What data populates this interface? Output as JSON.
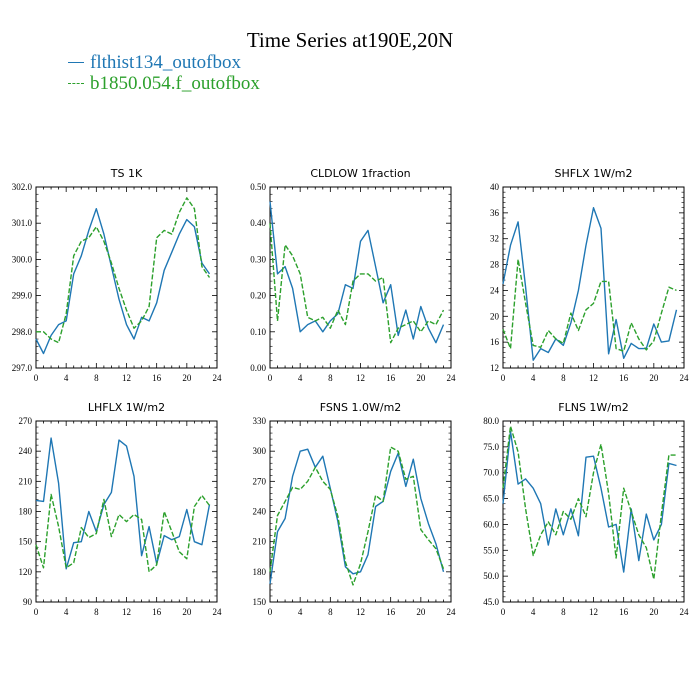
{
  "figure": {
    "title": "Time Series at190E,20N",
    "legend": [
      {
        "label": "flthist134_outofbox",
        "color": "#1f77b4",
        "style": "solid"
      },
      {
        "label": "b1850.054.f_outofbox",
        "color": "#2ca02c",
        "style": "dashed"
      }
    ]
  },
  "chart_data": [
    {
      "type": "line",
      "title": "TS   1K",
      "xlim": [
        0,
        24
      ],
      "xticks": [
        0,
        4,
        8,
        12,
        16,
        20,
        24
      ],
      "ylim": [
        297.0,
        302.0
      ],
      "yticks": [
        297.0,
        298.0,
        299.0,
        300.0,
        301.0,
        302.0
      ],
      "yticklabels": [
        "297.0",
        "298.0",
        "299.0",
        "300.0",
        "301.0",
        "302.0"
      ],
      "series": [
        {
          "name": "flthist134_outofbox",
          "x": [
            0,
            1,
            2,
            3,
            4,
            5,
            6,
            7,
            8,
            9,
            10,
            11,
            12,
            13,
            14,
            15,
            16,
            17,
            18,
            19,
            20,
            21,
            22,
            23
          ],
          "y": [
            297.8,
            297.4,
            297.9,
            298.2,
            298.3,
            299.6,
            300.1,
            300.8,
            301.4,
            300.7,
            299.8,
            298.9,
            298.2,
            297.8,
            298.4,
            298.3,
            298.8,
            299.7,
            300.2,
            300.7,
            301.1,
            300.9,
            299.9,
            299.6
          ]
        },
        {
          "name": "b1850.054.f_outofbox",
          "x": [
            0,
            1,
            2,
            3,
            4,
            5,
            6,
            7,
            8,
            9,
            10,
            11,
            12,
            13,
            14,
            15,
            16,
            17,
            18,
            19,
            20,
            21,
            22,
            23
          ],
          "y": [
            298.0,
            298.0,
            297.8,
            297.7,
            298.5,
            300.1,
            300.5,
            300.6,
            300.9,
            300.5,
            299.9,
            299.2,
            298.6,
            298.1,
            298.3,
            298.7,
            300.6,
            300.8,
            300.7,
            301.3,
            301.7,
            301.4,
            299.8,
            299.5
          ]
        }
      ]
    },
    {
      "type": "line",
      "title": "CLDLOW   1fraction",
      "xlim": [
        0,
        24
      ],
      "xticks": [
        0,
        4,
        8,
        12,
        16,
        20,
        24
      ],
      "ylim": [
        0.0,
        0.5
      ],
      "yticks": [
        0.0,
        0.1,
        0.2,
        0.3,
        0.4,
        0.5
      ],
      "yticklabels": [
        "0.00",
        "0.10",
        "0.20",
        "0.30",
        "0.40",
        "0.50"
      ],
      "series": [
        {
          "name": "flthist134_outofbox",
          "x": [
            0,
            1,
            2,
            3,
            4,
            5,
            6,
            7,
            8,
            9,
            10,
            11,
            12,
            13,
            14,
            15,
            16,
            17,
            18,
            19,
            20,
            21,
            22,
            23
          ],
          "y": [
            0.46,
            0.26,
            0.28,
            0.22,
            0.1,
            0.12,
            0.13,
            0.1,
            0.13,
            0.15,
            0.23,
            0.22,
            0.35,
            0.38,
            0.28,
            0.18,
            0.23,
            0.09,
            0.16,
            0.08,
            0.17,
            0.11,
            0.07,
            0.12
          ]
        },
        {
          "name": "b1850.054.f_outofbox",
          "x": [
            0,
            1,
            2,
            3,
            4,
            5,
            6,
            7,
            8,
            9,
            10,
            11,
            12,
            13,
            14,
            15,
            16,
            17,
            18,
            19,
            20,
            21,
            22,
            23
          ],
          "y": [
            0.4,
            0.13,
            0.34,
            0.31,
            0.26,
            0.14,
            0.13,
            0.14,
            0.11,
            0.16,
            0.12,
            0.24,
            0.26,
            0.26,
            0.24,
            0.25,
            0.07,
            0.11,
            0.12,
            0.13,
            0.1,
            0.13,
            0.12,
            0.16
          ]
        }
      ]
    },
    {
      "type": "line",
      "title": "SHFLX   1W/m2",
      "xlim": [
        0,
        24
      ],
      "xticks": [
        0,
        4,
        8,
        12,
        16,
        20,
        24
      ],
      "ylim": [
        12,
        40
      ],
      "yticks": [
        12,
        16,
        20,
        24,
        28,
        32,
        36,
        40
      ],
      "yticklabels": [
        "12",
        "16",
        "20",
        "24",
        "28",
        "32",
        "36",
        "40"
      ],
      "series": [
        {
          "name": "flthist134_outofbox",
          "x": [
            0,
            1,
            2,
            3,
            4,
            5,
            6,
            7,
            8,
            9,
            10,
            11,
            12,
            13,
            14,
            15,
            16,
            17,
            18,
            19,
            20,
            21,
            22,
            23
          ],
          "y": [
            25.0,
            31.0,
            34.6,
            24.5,
            13.2,
            15.0,
            14.4,
            16.5,
            15.5,
            19.0,
            24.0,
            31.0,
            36.8,
            33.6,
            14.2,
            19.5,
            13.5,
            15.8,
            15.0,
            15.0,
            18.8,
            16.0,
            16.2,
            21.0
          ]
        },
        {
          "name": "b1850.054.f_outofbox",
          "x": [
            0,
            1,
            2,
            3,
            4,
            5,
            6,
            7,
            8,
            9,
            10,
            11,
            12,
            13,
            14,
            15,
            16,
            17,
            18,
            19,
            20,
            21,
            22,
            23
          ],
          "y": [
            18.0,
            15.0,
            28.8,
            22.0,
            15.5,
            15.2,
            17.8,
            16.5,
            15.8,
            20.5,
            17.8,
            21.0,
            22.0,
            25.4,
            25.4,
            15.0,
            14.6,
            19.0,
            16.5,
            14.8,
            16.2,
            20.5,
            24.5,
            24.0
          ]
        }
      ]
    },
    {
      "type": "line",
      "title": "LHFLX   1W/m2",
      "xlim": [
        0,
        24
      ],
      "xticks": [
        0,
        4,
        8,
        12,
        16,
        20,
        24
      ],
      "ylim": [
        90,
        270
      ],
      "yticks": [
        90,
        120,
        150,
        180,
        210,
        240,
        270
      ],
      "yticklabels": [
        "90",
        "120",
        "150",
        "180",
        "210",
        "240",
        "270"
      ],
      "series": [
        {
          "name": "flthist134_outofbox",
          "x": [
            0,
            1,
            2,
            3,
            4,
            5,
            6,
            7,
            8,
            9,
            10,
            11,
            12,
            13,
            14,
            15,
            16,
            17,
            18,
            19,
            20,
            21,
            22,
            23
          ],
          "y": [
            191,
            190,
            253,
            208,
            123,
            149,
            150,
            180,
            160,
            187,
            199,
            251,
            245,
            215,
            136,
            165,
            128,
            156,
            152,
            155,
            182,
            150,
            147,
            187
          ]
        },
        {
          "name": "b1850.054.f_outofbox",
          "x": [
            0,
            1,
            2,
            3,
            4,
            5,
            6,
            7,
            8,
            9,
            10,
            11,
            12,
            13,
            14,
            15,
            16,
            17,
            18,
            19,
            20,
            21,
            22,
            23
          ],
          "y": [
            147,
            124,
            197,
            165,
            124,
            129,
            164,
            154,
            158,
            192,
            155,
            177,
            170,
            177,
            172,
            120,
            127,
            180,
            160,
            140,
            133,
            185,
            196,
            186
          ]
        }
      ]
    },
    {
      "type": "line",
      "title": "FSNS   1.0W/m2",
      "xlim": [
        0,
        24
      ],
      "xticks": [
        0,
        4,
        8,
        12,
        16,
        20,
        24
      ],
      "ylim": [
        150,
        330
      ],
      "yticks": [
        150,
        180,
        210,
        240,
        270,
        300,
        330
      ],
      "yticklabels": [
        "150",
        "180",
        "210",
        "240",
        "270",
        "300",
        "330"
      ],
      "series": [
        {
          "name": "flthist134_outofbox",
          "x": [
            0,
            1,
            2,
            3,
            4,
            5,
            6,
            7,
            8,
            9,
            10,
            11,
            12,
            13,
            14,
            15,
            16,
            17,
            18,
            19,
            20,
            21,
            22,
            23
          ],
          "y": [
            168,
            220,
            233,
            275,
            300,
            302,
            284,
            295,
            263,
            230,
            185,
            178,
            180,
            197,
            245,
            250,
            280,
            298,
            265,
            292,
            253,
            228,
            208,
            180
          ]
        },
        {
          "name": "b1850.054.f_outofbox",
          "x": [
            0,
            1,
            2,
            3,
            4,
            5,
            6,
            7,
            8,
            9,
            10,
            11,
            12,
            13,
            14,
            15,
            16,
            17,
            18,
            19,
            20,
            21,
            22,
            23
          ],
          "y": [
            180,
            236,
            250,
            264,
            262,
            270,
            284,
            270,
            262,
            235,
            190,
            167,
            188,
            220,
            256,
            250,
            304,
            300,
            272,
            275,
            222,
            212,
            203,
            183
          ]
        }
      ]
    },
    {
      "type": "line",
      "title": "FLNS   1W/m2",
      "xlim": [
        0,
        24
      ],
      "xticks": [
        0,
        4,
        8,
        12,
        16,
        20,
        24
      ],
      "ylim": [
        45,
        80
      ],
      "yticks": [
        45,
        50,
        55,
        60,
        65,
        70,
        75,
        80
      ],
      "yticklabels": [
        "45.0",
        "50.0",
        "55.0",
        "60.0",
        "65.0",
        "70.0",
        "75.0",
        "80.0"
      ],
      "series": [
        {
          "name": "flthist134_outofbox",
          "x": [
            0,
            1,
            2,
            3,
            4,
            5,
            6,
            7,
            8,
            9,
            10,
            11,
            12,
            13,
            14,
            15,
            16,
            17,
            18,
            19,
            20,
            21,
            22,
            23
          ],
          "y": [
            64.0,
            78.0,
            67.8,
            68.8,
            67.0,
            64.0,
            56.0,
            63.0,
            58.0,
            63.0,
            57.8,
            73.0,
            73.2,
            67.0,
            59.5,
            60.0,
            50.8,
            63.0,
            53.0,
            62.0,
            57.0,
            60.0,
            71.8,
            71.4
          ]
        },
        {
          "name": "b1850.054.f_outofbox",
          "x": [
            0,
            1,
            2,
            3,
            4,
            5,
            6,
            7,
            8,
            9,
            10,
            11,
            12,
            13,
            14,
            15,
            16,
            17,
            18,
            19,
            20,
            21,
            22,
            23
          ],
          "y": [
            67.0,
            79.0,
            74.0,
            63.0,
            54.0,
            58.0,
            60.5,
            58.0,
            62.5,
            61.0,
            65.0,
            61.5,
            70.0,
            75.5,
            66.0,
            53.5,
            67.0,
            62.5,
            58.0,
            55.5,
            49.4,
            62.0,
            73.4,
            73.4
          ]
        }
      ]
    }
  ]
}
